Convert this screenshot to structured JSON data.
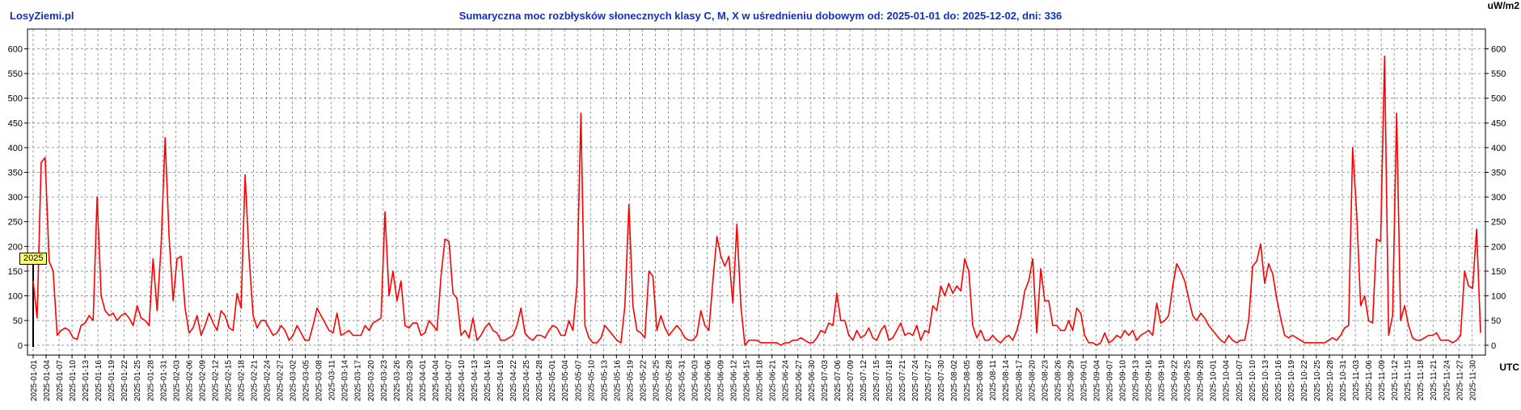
{
  "brand": "LosyZiemi.pl",
  "title": "Sumaryczna moc rozbłysków słonecznych klasy C, M, X w uśrednieniu dobowym od: 2025-01-01 do: 2025-12-02, dni: 336",
  "unit_label": "uW/m2",
  "utc_label": "UTC",
  "year_marker": "2025",
  "colors": {
    "line": "#ff0000",
    "title": "#1030c8",
    "grid": "#808080",
    "marker_bg": "#ffff66"
  },
  "chart_data": {
    "type": "line",
    "title": "Sumaryczna moc rozbłysków słonecznych klasy C, M, X w uśrednieniu dobowym od: 2025-01-01 do: 2025-12-02, dni: 336",
    "xlabel": "UTC",
    "ylabel": "uW/m2",
    "ylim": [
      -20,
      640
    ],
    "yticks": [
      0,
      50,
      100,
      150,
      200,
      250,
      300,
      350,
      400,
      450,
      500,
      550,
      600
    ],
    "grid": true,
    "x_start": "2025-01-01",
    "x_end": "2025-12-02",
    "xticks": [
      "2025-01-01",
      "2025-01-04",
      "2025-01-07",
      "2025-01-10",
      "2025-01-13",
      "2025-01-16",
      "2025-01-19",
      "2025-01-22",
      "2025-01-25",
      "2025-01-28",
      "2025-01-31",
      "2025-02-03",
      "2025-02-06",
      "2025-02-09",
      "2025-02-12",
      "2025-02-15",
      "2025-02-18",
      "2025-02-21",
      "2025-02-24",
      "2025-02-27",
      "2025-03-02",
      "2025-03-05",
      "2025-03-08",
      "2025-03-11",
      "2025-03-14",
      "2025-03-17",
      "2025-03-20",
      "2025-03-23",
      "2025-03-26",
      "2025-03-29",
      "2025-04-01",
      "2025-04-04",
      "2025-04-07",
      "2025-04-10",
      "2025-04-13",
      "2025-04-16",
      "2025-04-19",
      "2025-04-22",
      "2025-04-25",
      "2025-04-28",
      "2025-05-01",
      "2025-05-04",
      "2025-05-07",
      "2025-05-10",
      "2025-05-13",
      "2025-05-16",
      "2025-05-19",
      "2025-05-22",
      "2025-05-25",
      "2025-05-28",
      "2025-05-31",
      "2025-06-03",
      "2025-06-06",
      "2025-06-09",
      "2025-06-12",
      "2025-06-15",
      "2025-06-18",
      "2025-06-21",
      "2025-06-24",
      "2025-06-27",
      "2025-06-30",
      "2025-07-03",
      "2025-07-06",
      "2025-07-09",
      "2025-07-12",
      "2025-07-15",
      "2025-07-18",
      "2025-07-21",
      "2025-07-24",
      "2025-07-27",
      "2025-07-30",
      "2025-08-02",
      "2025-08-05",
      "2025-08-08",
      "2025-08-11",
      "2025-08-14",
      "2025-08-17",
      "2025-08-20",
      "2025-08-23",
      "2025-08-26",
      "2025-08-29",
      "2025-09-01",
      "2025-09-04",
      "2025-09-07",
      "2025-09-10",
      "2025-09-13",
      "2025-09-16",
      "2025-09-19",
      "2025-09-22",
      "2025-09-25",
      "2025-09-28",
      "2025-10-01",
      "2025-10-04",
      "2025-10-07",
      "2025-10-10",
      "2025-10-13",
      "2025-10-16",
      "2025-10-19",
      "2025-10-22",
      "2025-10-25",
      "2025-10-28",
      "2025-10-31",
      "2025-11-03",
      "2025-11-06",
      "2025-11-09",
      "2025-11-12",
      "2025-11-15",
      "2025-11-18",
      "2025-11-21",
      "2025-11-24",
      "2025-11-27",
      "2025-11-30"
    ],
    "series": [
      {
        "values": [
          130,
          55,
          370,
          380,
          170,
          150,
          20,
          30,
          35,
          30,
          15,
          12,
          40,
          45,
          60,
          50,
          300,
          100,
          70,
          60,
          65,
          50,
          60,
          65,
          55,
          40,
          80,
          55,
          50,
          40,
          175,
          70,
          200,
          420,
          220,
          90,
          175,
          180,
          75,
          25,
          35,
          60,
          20,
          40,
          65,
          45,
          30,
          70,
          60,
          35,
          30,
          105,
          75,
          345,
          180,
          60,
          35,
          50,
          50,
          35,
          20,
          25,
          40,
          30,
          10,
          20,
          40,
          25,
          10,
          10,
          40,
          75,
          60,
          45,
          30,
          25,
          65,
          20,
          25,
          30,
          20,
          20,
          20,
          40,
          30,
          45,
          50,
          55,
          270,
          100,
          150,
          90,
          130,
          40,
          35,
          45,
          45,
          20,
          25,
          50,
          40,
          30,
          140,
          215,
          210,
          105,
          95,
          20,
          30,
          15,
          55,
          10,
          20,
          35,
          45,
          30,
          25,
          10,
          10,
          15,
          20,
          40,
          75,
          25,
          15,
          10,
          20,
          20,
          15,
          30,
          40,
          35,
          20,
          20,
          50,
          30,
          120,
          470,
          40,
          15,
          5,
          5,
          15,
          40,
          30,
          20,
          10,
          5,
          80,
          285,
          80,
          30,
          25,
          15,
          150,
          140,
          30,
          60,
          35,
          20,
          30,
          40,
          30,
          15,
          10,
          10,
          20,
          70,
          40,
          30,
          130,
          220,
          180,
          160,
          180,
          85,
          245,
          80,
          0,
          10,
          10,
          10,
          5,
          5,
          5,
          5,
          5,
          0,
          5,
          5,
          10,
          10,
          15,
          10,
          5,
          5,
          15,
          30,
          25,
          45,
          40,
          105,
          50,
          50,
          20,
          10,
          30,
          15,
          20,
          35,
          15,
          10,
          30,
          40,
          10,
          15,
          30,
          45,
          20,
          25,
          20,
          40,
          10,
          30,
          25,
          80,
          70,
          120,
          100,
          125,
          105,
          120,
          110,
          175,
          150,
          40,
          15,
          30,
          10,
          10,
          20,
          10,
          5,
          15,
          20,
          10,
          30,
          60,
          110,
          130,
          175,
          25,
          155,
          90,
          90,
          40,
          40,
          30,
          30,
          50,
          30,
          75,
          65,
          20,
          5,
          5,
          0,
          5,
          25,
          5,
          10,
          20,
          15,
          30,
          20,
          30,
          10,
          20,
          25,
          30,
          20,
          85,
          45,
          50,
          60,
          120,
          165,
          150,
          130,
          95,
          60,
          50,
          65,
          55,
          40,
          30,
          20,
          10,
          5,
          20,
          10,
          5,
          10,
          10,
          50,
          160,
          170,
          205,
          125,
          165,
          145,
          95,
          55,
          20,
          15,
          20,
          15,
          10,
          5,
          5,
          5,
          5,
          5,
          5,
          10,
          15,
          10,
          20,
          35,
          40,
          400,
          270,
          80,
          100,
          50,
          45,
          215,
          210,
          585,
          20,
          60,
          470,
          50,
          80,
          40,
          15,
          10,
          10,
          15,
          20,
          20,
          25,
          10,
          10,
          10,
          5,
          10,
          20,
          150,
          120,
          115,
          235,
          25
        ]
      }
    ]
  }
}
